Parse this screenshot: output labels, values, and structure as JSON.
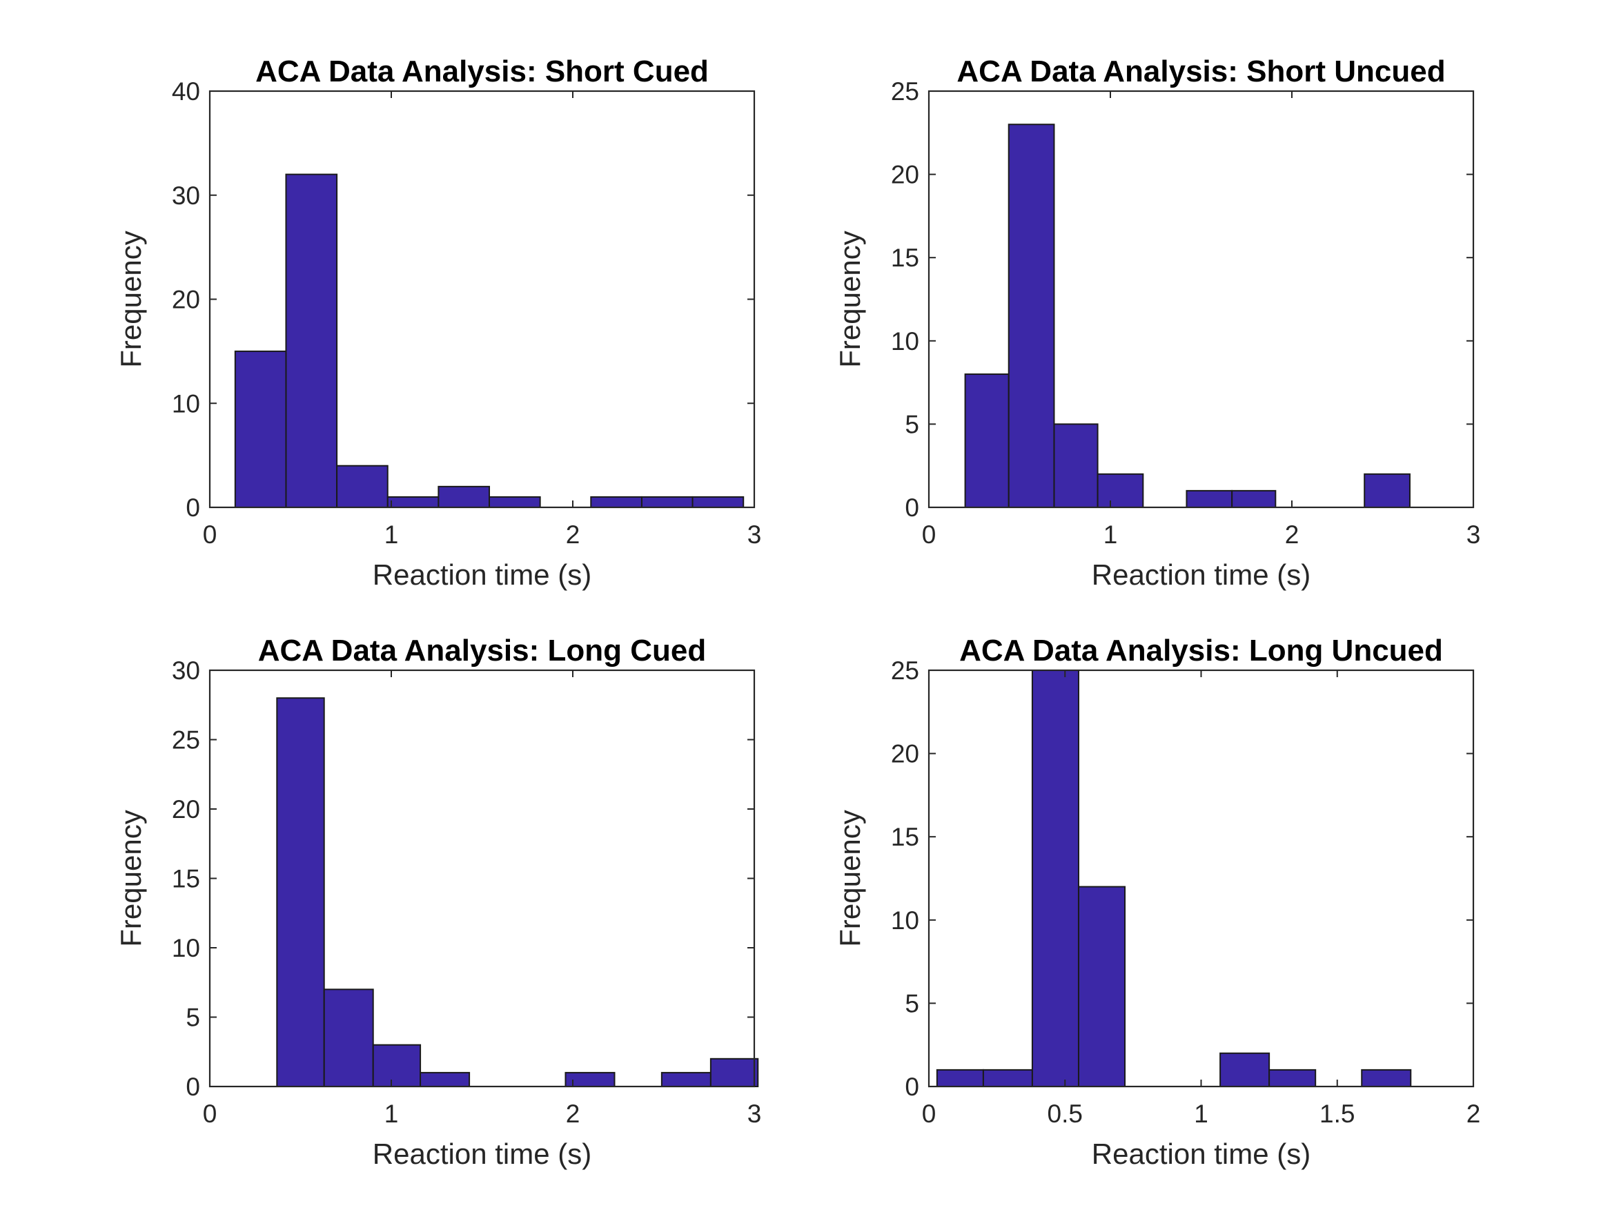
{
  "chart_data": [
    {
      "type": "bar",
      "title": "ACA Data Analysis: Short Cued",
      "xlabel": "Reaction time (s)",
      "ylabel": "Frequency",
      "xlim": [
        0,
        3
      ],
      "ylim": [
        0,
        40
      ],
      "xticks": [
        "0",
        "1",
        "2",
        "3"
      ],
      "yticks": [
        "0",
        "10",
        "20",
        "30",
        "40"
      ],
      "grid": false,
      "color": "#3c28a7",
      "bins": [
        {
          "start": 0.14,
          "end": 0.42,
          "value": 15
        },
        {
          "start": 0.42,
          "end": 0.7,
          "value": 32
        },
        {
          "start": 0.7,
          "end": 0.98,
          "value": 4
        },
        {
          "start": 0.98,
          "end": 1.26,
          "value": 1
        },
        {
          "start": 1.26,
          "end": 1.54,
          "value": 2
        },
        {
          "start": 1.54,
          "end": 1.82,
          "value": 1
        },
        {
          "start": 1.82,
          "end": 2.1,
          "value": 0
        },
        {
          "start": 2.1,
          "end": 2.38,
          "value": 1
        },
        {
          "start": 2.38,
          "end": 2.66,
          "value": 1
        },
        {
          "start": 2.66,
          "end": 2.94,
          "value": 1
        }
      ]
    },
    {
      "type": "bar",
      "title": "ACA Data Analysis: Short Uncued",
      "xlabel": "Reaction time (s)",
      "ylabel": "Frequency",
      "xlim": [
        0,
        3
      ],
      "ylim": [
        0,
        25
      ],
      "xticks": [
        "0",
        "1",
        "2",
        "3"
      ],
      "yticks": [
        "0",
        "5",
        "10",
        "15",
        "20",
        "25"
      ],
      "grid": false,
      "color": "#3c28a7",
      "bins": [
        {
          "start": 0.2,
          "end": 0.44,
          "value": 8
        },
        {
          "start": 0.44,
          "end": 0.69,
          "value": 23
        },
        {
          "start": 0.69,
          "end": 0.93,
          "value": 5
        },
        {
          "start": 0.93,
          "end": 1.18,
          "value": 2
        },
        {
          "start": 1.18,
          "end": 1.42,
          "value": 0
        },
        {
          "start": 1.42,
          "end": 1.67,
          "value": 1
        },
        {
          "start": 1.67,
          "end": 1.91,
          "value": 1
        },
        {
          "start": 1.91,
          "end": 2.16,
          "value": 0
        },
        {
          "start": 2.16,
          "end": 2.4,
          "value": 0
        },
        {
          "start": 2.4,
          "end": 2.65,
          "value": 2
        }
      ]
    },
    {
      "type": "bar",
      "title": "ACA Data Analysis: Long Cued",
      "xlabel": "Reaction time (s)",
      "ylabel": "Frequency",
      "xlim": [
        0,
        3
      ],
      "ylim": [
        0,
        30
      ],
      "xticks": [
        "0",
        "1",
        "2",
        "3"
      ],
      "yticks": [
        "0",
        "5",
        "10",
        "15",
        "20",
        "25",
        "30"
      ],
      "grid": false,
      "color": "#3c28a7",
      "bins": [
        {
          "start": 0.37,
          "end": 0.63,
          "value": 28
        },
        {
          "start": 0.63,
          "end": 0.9,
          "value": 7
        },
        {
          "start": 0.9,
          "end": 1.16,
          "value": 3
        },
        {
          "start": 1.16,
          "end": 1.43,
          "value": 1
        },
        {
          "start": 1.43,
          "end": 1.69,
          "value": 0
        },
        {
          "start": 1.69,
          "end": 1.96,
          "value": 0
        },
        {
          "start": 1.96,
          "end": 2.23,
          "value": 1
        },
        {
          "start": 2.23,
          "end": 2.49,
          "value": 0
        },
        {
          "start": 2.49,
          "end": 2.76,
          "value": 1
        },
        {
          "start": 2.76,
          "end": 3.02,
          "value": 2
        }
      ]
    },
    {
      "type": "bar",
      "title": "ACA Data Analysis: Long Uncued",
      "xlabel": "Reaction time (s)",
      "ylabel": "Frequency",
      "xlim": [
        0,
        2
      ],
      "ylim": [
        0,
        25
      ],
      "xticks": [
        "0",
        "0.5",
        "1",
        "1.5",
        "2"
      ],
      "yticks": [
        "0",
        "5",
        "10",
        "15",
        "20",
        "25"
      ],
      "grid": false,
      "color": "#3c28a7",
      "bins": [
        {
          "start": 0.03,
          "end": 0.2,
          "value": 1
        },
        {
          "start": 0.2,
          "end": 0.38,
          "value": 1
        },
        {
          "start": 0.38,
          "end": 0.55,
          "value": 25
        },
        {
          "start": 0.55,
          "end": 0.72,
          "value": 12
        },
        {
          "start": 0.72,
          "end": 0.9,
          "value": 0
        },
        {
          "start": 0.9,
          "end": 1.07,
          "value": 0
        },
        {
          "start": 1.07,
          "end": 1.25,
          "value": 2
        },
        {
          "start": 1.25,
          "end": 1.42,
          "value": 1
        },
        {
          "start": 1.42,
          "end": 1.59,
          "value": 0
        },
        {
          "start": 1.59,
          "end": 1.77,
          "value": 1
        }
      ]
    }
  ]
}
